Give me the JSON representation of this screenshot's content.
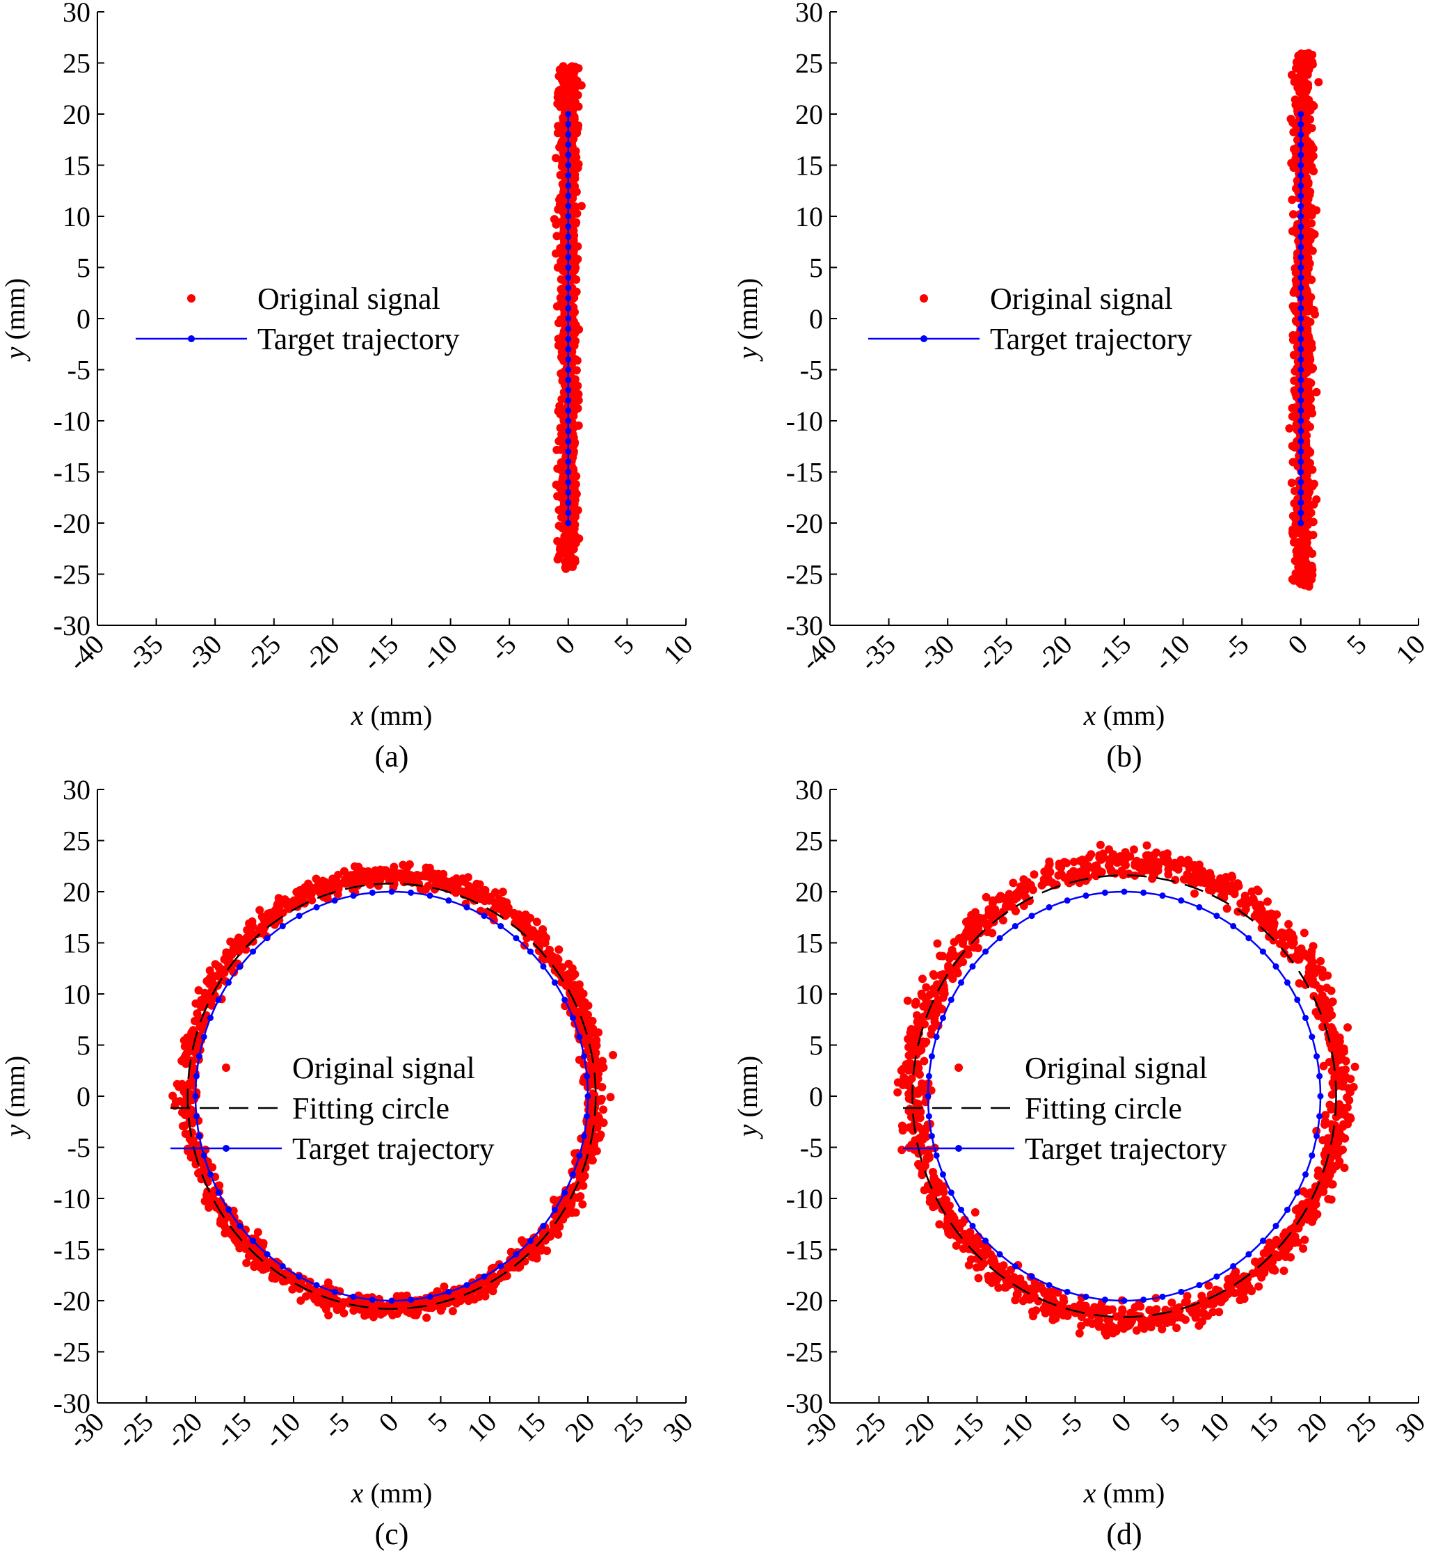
{
  "figure": {
    "panels": [
      "(a)",
      "(b)",
      "(c)",
      "(d)"
    ]
  },
  "chart_data": [
    {
      "id": "a",
      "type": "scatter",
      "panel_label": "(a)",
      "xlabel_var": "x",
      "xlabel_unit": " (mm)",
      "ylabel_var": "y",
      "ylabel_unit": " (mm)",
      "xlim": [
        -40,
        10
      ],
      "ylim": [
        -30,
        30
      ],
      "xticks": [
        -40,
        -35,
        -30,
        -25,
        -20,
        -15,
        -10,
        -5,
        0,
        5,
        10
      ],
      "yticks": [
        -30,
        -25,
        -20,
        -15,
        -10,
        -5,
        0,
        5,
        10,
        15,
        20,
        25,
        30
      ],
      "legend_position": "left-middle",
      "series": [
        {
          "name": "Original signal",
          "kind": "scatter",
          "color": "#ff0000",
          "shape": "line-band",
          "x_center": 0.0,
          "x_spread": 0.9,
          "y_range": [
            -24.5,
            24.7
          ],
          "n_points": 900
        },
        {
          "name": "Target trajectory",
          "kind": "line-marker",
          "color": "#0000ff",
          "shape": "segment",
          "x": [
            0,
            0
          ],
          "y": [
            -20,
            20
          ],
          "n_markers": 41
        }
      ]
    },
    {
      "id": "b",
      "type": "scatter",
      "panel_label": "(b)",
      "xlabel_var": "x",
      "xlabel_unit": " (mm)",
      "ylabel_var": "y",
      "ylabel_unit": " (mm)",
      "xlim": [
        -40,
        10
      ],
      "ylim": [
        -30,
        30
      ],
      "xticks": [
        -40,
        -35,
        -30,
        -25,
        -20,
        -15,
        -10,
        -5,
        0,
        5,
        10
      ],
      "yticks": [
        -30,
        -25,
        -20,
        -15,
        -10,
        -5,
        0,
        5,
        10,
        15,
        20,
        25,
        30
      ],
      "legend_position": "left-middle",
      "series": [
        {
          "name": "Original signal",
          "kind": "scatter",
          "color": "#ff0000",
          "shape": "line-band",
          "x_center": 0.2,
          "x_spread": 0.9,
          "y_range": [
            -26.3,
            26.0
          ],
          "n_points": 900
        },
        {
          "name": "Target trajectory",
          "kind": "line-marker",
          "color": "#0000ff",
          "shape": "segment",
          "x": [
            0,
            0
          ],
          "y": [
            -20,
            20
          ],
          "n_markers": 41
        }
      ]
    },
    {
      "id": "c",
      "type": "scatter",
      "panel_label": "(c)",
      "xlabel_var": "x",
      "xlabel_unit": " (mm)",
      "ylabel_var": "y",
      "ylabel_unit": " (mm)",
      "xlim": [
        -30,
        30
      ],
      "ylim": [
        -30,
        30
      ],
      "xticks": [
        -30,
        -25,
        -20,
        -15,
        -10,
        -5,
        0,
        5,
        10,
        15,
        20,
        25,
        30
      ],
      "yticks": [
        -30,
        -25,
        -20,
        -15,
        -10,
        -5,
        0,
        5,
        10,
        15,
        20,
        25,
        30
      ],
      "legend_position": "center",
      "series": [
        {
          "name": "Original signal",
          "kind": "scatter",
          "color": "#ff0000",
          "shape": "ring",
          "center": [
            0,
            0.5
          ],
          "radius_x": 20.8,
          "radius_y": 21.2,
          "radial_spread": 1.0,
          "n_points": 1400
        },
        {
          "name": "Fitting circle",
          "kind": "dashed-line",
          "color": "#000000",
          "shape": "circle",
          "center": [
            0,
            0
          ],
          "radius": 20.8
        },
        {
          "name": "Target trajectory",
          "kind": "line-marker",
          "color": "#0000ff",
          "shape": "circle",
          "center": [
            0,
            0
          ],
          "radius": 20,
          "n_markers": 64
        }
      ]
    },
    {
      "id": "d",
      "type": "scatter",
      "panel_label": "(d)",
      "xlabel_var": "x",
      "xlabel_unit": " (mm)",
      "ylabel_var": "y",
      "ylabel_unit": " (mm)",
      "xlim": [
        -30,
        30
      ],
      "ylim": [
        -30,
        30
      ],
      "xticks": [
        -30,
        -25,
        -20,
        -15,
        -10,
        -5,
        0,
        5,
        10,
        15,
        20,
        25,
        30
      ],
      "yticks": [
        -30,
        -25,
        -20,
        -15,
        -10,
        -5,
        0,
        5,
        10,
        15,
        20,
        25,
        30
      ],
      "legend_position": "center",
      "series": [
        {
          "name": "Original signal",
          "kind": "scatter",
          "color": "#ff0000",
          "shape": "ring",
          "center": [
            0.3,
            0.5
          ],
          "radius_x": 21.8,
          "radius_y": 22.4,
          "radial_spread": 1.2,
          "n_points": 1400
        },
        {
          "name": "Fitting circle",
          "kind": "dashed-line",
          "color": "#000000",
          "shape": "circle",
          "center": [
            0,
            0
          ],
          "radius": 21.6
        },
        {
          "name": "Target trajectory",
          "kind": "line-marker",
          "color": "#0000ff",
          "shape": "circle",
          "center": [
            0,
            0
          ],
          "radius": 20,
          "n_markers": 64
        }
      ]
    }
  ]
}
